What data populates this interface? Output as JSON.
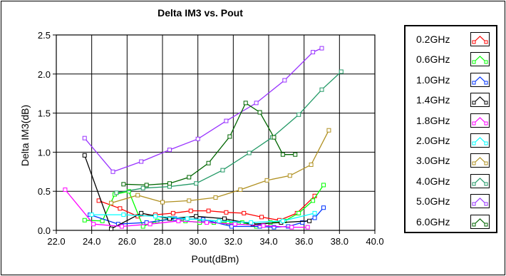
{
  "chart_data": {
    "type": "line",
    "title": "Delta IM3 vs. Pout",
    "xlabel": "Pout(dBm)",
    "ylabel": "Delta IM3(dB)",
    "xlim": [
      22.0,
      40.0
    ],
    "ylim": [
      0.0,
      2.5
    ],
    "xticks": [
      "22.0",
      "24.0",
      "26.0",
      "28.0",
      "30.0",
      "32.0",
      "34.0",
      "36.0",
      "38.0",
      "40.0"
    ],
    "yticks": [
      "0.0",
      "0.5",
      "1.0",
      "1.5",
      "2.0",
      "2.5"
    ],
    "grid": true,
    "legend_position": "right",
    "series": [
      {
        "name": "0.2GHz",
        "color": "#ff0000",
        "x": [
          24.4,
          25.6,
          26.6,
          27.6,
          28.6,
          29.6,
          30.6,
          31.6,
          32.6,
          33.6,
          34.6,
          35.6,
          36.6
        ],
        "y": [
          0.38,
          0.28,
          0.18,
          0.2,
          0.22,
          0.25,
          0.25,
          0.23,
          0.22,
          0.17,
          0.13,
          0.22,
          0.44
        ]
      },
      {
        "name": "0.6GHz",
        "color": "#00ff00",
        "x": [
          23.6,
          24.6,
          25.3,
          26.1,
          26.9,
          27.7,
          28.5,
          29.3,
          30.1,
          30.9,
          31.7,
          32.5,
          33.3,
          34.1,
          34.9,
          35.7,
          36.5,
          37.1
        ],
        "y": [
          0.13,
          0.12,
          0.46,
          0.5,
          0.05,
          0.12,
          0.15,
          0.12,
          0.1,
          0.1,
          0.1,
          0.1,
          0.05,
          0.1,
          0.12,
          0.22,
          0.38,
          0.58
        ]
      },
      {
        "name": "1.0GHz",
        "color": "#0033ff",
        "x": [
          23.9,
          25.5,
          27.1,
          28.7,
          30.3,
          31.9,
          33.5,
          34.3,
          35.1,
          35.9,
          36.6,
          37.1
        ],
        "y": [
          0.2,
          0.08,
          0.1,
          0.15,
          0.14,
          0.05,
          0.05,
          0.04,
          0.05,
          0.1,
          0.16,
          0.29
        ]
      },
      {
        "name": "1.4GHz",
        "color": "#000000",
        "x": [
          23.6,
          25.1,
          26.8,
          28.4,
          29.9,
          31.5,
          33.1,
          34.7,
          36.3
        ],
        "y": [
          0.96,
          0.02,
          0.22,
          0.15,
          0.18,
          0.15,
          0.08,
          0.1,
          0.12
        ]
      },
      {
        "name": "1.8GHz",
        "color": "#ff00ff",
        "x": [
          22.5,
          24.1,
          25.7,
          27.3,
          28.9,
          30.5,
          32.1,
          33.7,
          35.3,
          36.2
        ],
        "y": [
          0.52,
          0.08,
          0.05,
          0.08,
          0.12,
          0.1,
          0.08,
          0.06,
          0.04,
          0.04
        ]
      },
      {
        "name": "2.0GHz",
        "color": "#00ffff",
        "x": [
          24.0,
          25.8,
          27.6,
          29.4,
          31.2,
          33.0,
          34.8,
          36.6
        ],
        "y": [
          0.2,
          0.2,
          0.18,
          0.15,
          0.12,
          0.1,
          0.12,
          0.22
        ]
      },
      {
        "name": "3.0GHz",
        "color": "#b09020",
        "x": [
          25.1,
          26.6,
          28.0,
          29.5,
          31.0,
          32.4,
          33.9,
          35.2,
          36.4,
          37.4
        ],
        "y": [
          0.35,
          0.45,
          0.36,
          0.38,
          0.42,
          0.52,
          0.64,
          0.7,
          0.84,
          1.28
        ]
      },
      {
        "name": "4.0GHz",
        "color": "#229966",
        "x": [
          25.4,
          26.9,
          28.4,
          29.9,
          31.4,
          32.9,
          34.2,
          35.7,
          37.0,
          38.1
        ],
        "y": [
          0.48,
          0.54,
          0.56,
          0.6,
          0.77,
          0.99,
          1.19,
          1.48,
          1.8,
          2.03
        ]
      },
      {
        "name": "5.0GHz",
        "color": "#9933ff",
        "x": [
          23.6,
          25.2,
          26.8,
          28.4,
          30.0,
          31.6,
          33.3,
          34.9,
          36.5,
          37.0
        ],
        "y": [
          1.18,
          0.75,
          0.88,
          1.03,
          1.17,
          1.4,
          1.63,
          1.92,
          2.28,
          2.33
        ]
      },
      {
        "name": "6.0GHz",
        "color": "#006600",
        "x": [
          25.8,
          27.1,
          28.4,
          29.5,
          30.6,
          31.8,
          32.7,
          33.5,
          34.3,
          34.8,
          35.5
        ],
        "y": [
          0.59,
          0.58,
          0.6,
          0.68,
          0.86,
          1.2,
          1.63,
          1.51,
          1.19,
          0.97,
          0.97
        ]
      }
    ]
  }
}
